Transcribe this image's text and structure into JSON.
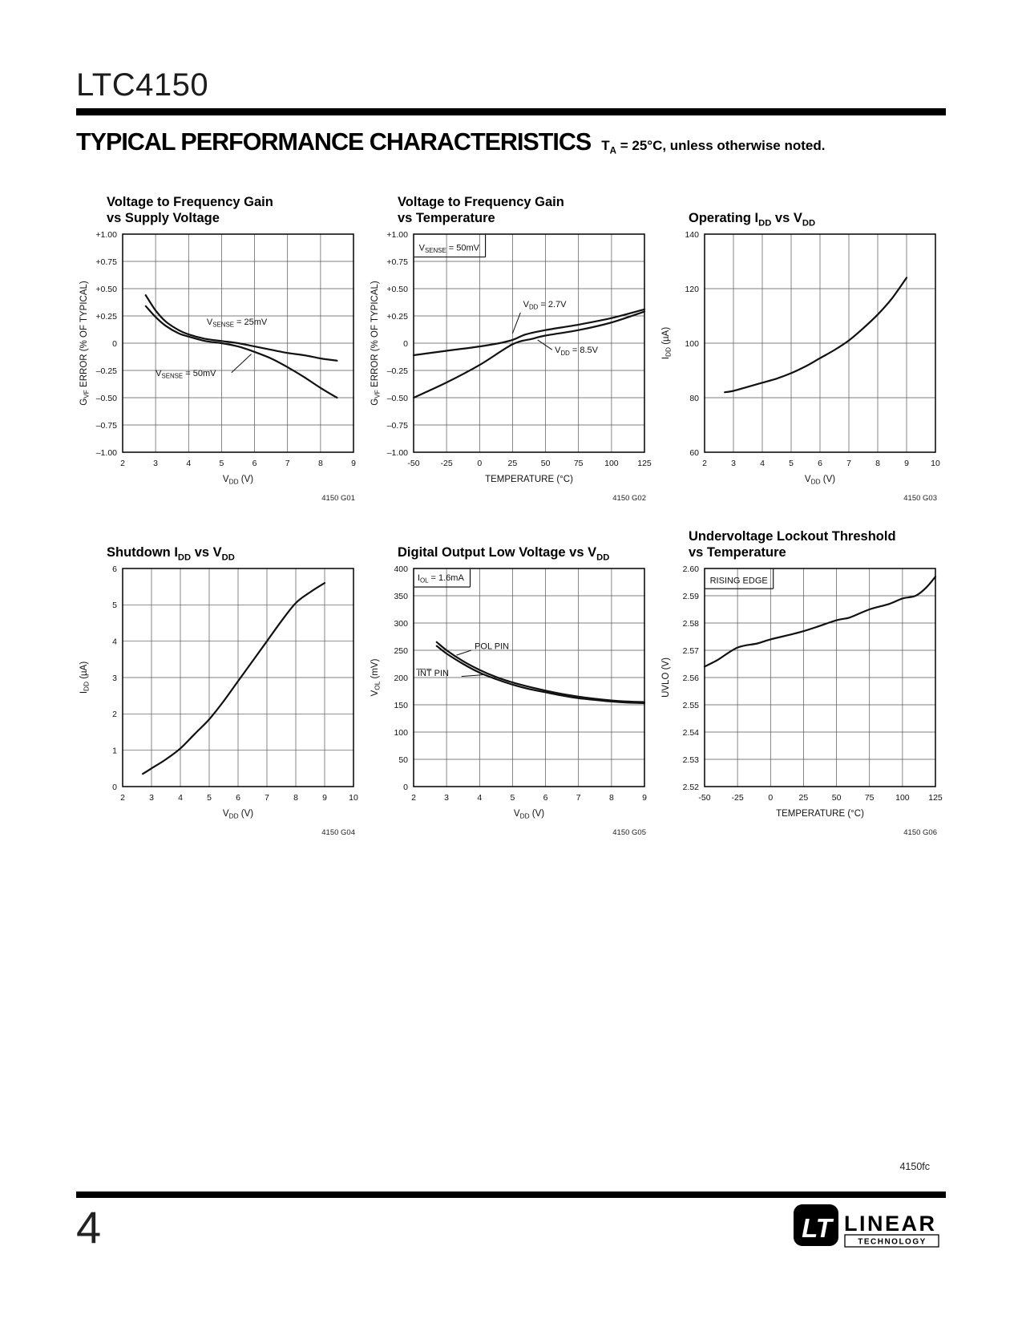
{
  "page": {
    "part_number": "LTC4150",
    "footer_code": "4150fc",
    "page_number": "4"
  },
  "header": {
    "section_title": "TYPICAL PERFORMANCE CHARACTERISTICS",
    "section_note": "T_{A} = 25°C, unless otherwise noted."
  },
  "logo": {
    "mark": "LT",
    "name": "LINEAR",
    "subname": "TECHNOLOGY"
  },
  "chart_data": [
    {
      "id": "4150 G01",
      "type": "line",
      "title": "Voltage to Frequency Gain\nvs Supply Voltage",
      "xlabel": "V_{DD} (V)",
      "ylabel": "G_{VF} ERROR (% OF TYPICAL)",
      "xlim": [
        2,
        9
      ],
      "ylim": [
        -1,
        1
      ],
      "grid": true,
      "xticks": [
        2,
        3,
        4,
        5,
        6,
        7,
        8,
        9
      ],
      "yticks": [
        1,
        0.75,
        0.5,
        0.25,
        0,
        -0.25,
        -0.5,
        -0.75,
        -1
      ],
      "ytick_labels": [
        "+1.00",
        "+0.75",
        "+0.50",
        "+0.25",
        "0",
        "–0.25",
        "–0.50",
        "–0.75",
        "–1.00"
      ],
      "series": [
        {
          "name": "V_{SENSE} = 25mV",
          "points": [
            [
              2.7,
              0.44
            ],
            [
              3,
              0.3
            ],
            [
              3.3,
              0.2
            ],
            [
              3.7,
              0.12
            ],
            [
              4,
              0.08
            ],
            [
              4.5,
              0.04
            ],
            [
              5,
              0.02
            ],
            [
              5.5,
              0
            ],
            [
              6,
              -0.03
            ],
            [
              6.5,
              -0.06
            ],
            [
              7,
              -0.09
            ],
            [
              7.5,
              -0.11
            ],
            [
              8,
              -0.14
            ],
            [
              8.5,
              -0.16
            ]
          ]
        },
        {
          "name": "V_{SENSE} = 50mV",
          "points": [
            [
              2.7,
              0.34
            ],
            [
              3,
              0.24
            ],
            [
              3.3,
              0.16
            ],
            [
              3.7,
              0.09
            ],
            [
              4,
              0.06
            ],
            [
              4.5,
              0.02
            ],
            [
              5,
              0
            ],
            [
              5.5,
              -0.03
            ],
            [
              6,
              -0.08
            ],
            [
              6.5,
              -0.14
            ],
            [
              7,
              -0.22
            ],
            [
              7.5,
              -0.31
            ],
            [
              8,
              -0.41
            ],
            [
              8.5,
              -0.5
            ]
          ]
        }
      ],
      "annotations": [
        {
          "text": "V_{SENSE} = 25mV",
          "x": 4.55,
          "y": 0.17,
          "anchor": "start"
        },
        {
          "text": "V_{SENSE} = 50mV",
          "x": 3.0,
          "y": -0.3,
          "anchor": "start",
          "leader": [
            5.3,
            -0.27,
            5.9,
            -0.1
          ]
        }
      ]
    },
    {
      "id": "4150 G02",
      "type": "line",
      "title": "Voltage to Frequency Gain\nvs Temperature",
      "xlabel": "TEMPERATURE (°C)",
      "ylabel": "G_{VF} ERROR (% OF TYPICAL)",
      "xlim": [
        -50,
        125
      ],
      "ylim": [
        -1,
        1
      ],
      "grid": true,
      "xticks": [
        -50,
        -25,
        0,
        25,
        50,
        75,
        100,
        125
      ],
      "yticks": [
        1,
        0.75,
        0.5,
        0.25,
        0,
        -0.25,
        -0.5,
        -0.75,
        -1
      ],
      "ytick_labels": [
        "+1.00",
        "+0.75",
        "+0.50",
        "+0.25",
        "0",
        "–0.25",
        "–0.50",
        "–0.75",
        "–1.00"
      ],
      "series": [
        {
          "name": "V_{DD} = 2.7V",
          "points": [
            [
              -50,
              -0.11
            ],
            [
              -25,
              -0.07
            ],
            [
              0,
              -0.03
            ],
            [
              15,
              0
            ],
            [
              25,
              0.03
            ],
            [
              35,
              0.08
            ],
            [
              50,
              0.12
            ],
            [
              75,
              0.17
            ],
            [
              100,
              0.23
            ],
            [
              125,
              0.31
            ]
          ]
        },
        {
          "name": "V_{DD} = 8.5V",
          "points": [
            [
              -50,
              -0.5
            ],
            [
              -25,
              -0.36
            ],
            [
              0,
              -0.2
            ],
            [
              25,
              -0.01
            ],
            [
              40,
              0.04
            ],
            [
              50,
              0.07
            ],
            [
              75,
              0.12
            ],
            [
              100,
              0.19
            ],
            [
              125,
              0.29
            ]
          ]
        }
      ],
      "annotations": [
        {
          "text": "V_{SENSE} = 50mV",
          "x": -46,
          "y": 0.85,
          "anchor": "start",
          "boxed": true
        },
        {
          "text": "V_{DD} = 2.7V",
          "x": 33,
          "y": 0.33,
          "anchor": "start",
          "leader": [
            31,
            0.28,
            25,
            0.09
          ]
        },
        {
          "text": "V_{DD} = 8.5V",
          "x": 57,
          "y": -0.09,
          "anchor": "start",
          "leader": [
            55,
            -0.06,
            44,
            0.03
          ]
        }
      ]
    },
    {
      "id": "4150 G03",
      "type": "line",
      "title": "Operating I_{DD} vs V_{DD}",
      "xlabel": "V_{DD} (V)",
      "ylabel": "I_{DD} (µA)",
      "xlim": [
        2,
        10
      ],
      "ylim": [
        60,
        140
      ],
      "grid": true,
      "xticks": [
        2,
        3,
        4,
        5,
        6,
        7,
        8,
        9,
        10
      ],
      "yticks": [
        140,
        120,
        100,
        80,
        60
      ],
      "ytick_labels": [
        "140",
        "120",
        "100",
        "80",
        "60"
      ],
      "series": [
        {
          "name": "",
          "points": [
            [
              2.7,
              82
            ],
            [
              3,
              82.5
            ],
            [
              3.5,
              84
            ],
            [
              4,
              85.5
            ],
            [
              4.5,
              87
            ],
            [
              5,
              89
            ],
            [
              5.5,
              91.5
            ],
            [
              6,
              94.5
            ],
            [
              6.5,
              97.5
            ],
            [
              7,
              101
            ],
            [
              7.5,
              105.5
            ],
            [
              8,
              110.5
            ],
            [
              8.5,
              116.5
            ],
            [
              9,
              124
            ]
          ]
        }
      ],
      "annotations": []
    },
    {
      "id": "4150 G04",
      "type": "line",
      "title": "Shutdown I_{DD} vs V_{DD}",
      "xlabel": "V_{DD} (V)",
      "ylabel": "I_{DD} (µA)",
      "xlim": [
        2,
        10
      ],
      "ylim": [
        0,
        6
      ],
      "grid": true,
      "xticks": [
        2,
        3,
        4,
        5,
        6,
        7,
        8,
        9,
        10
      ],
      "yticks": [
        6,
        5,
        4,
        3,
        2,
        1,
        0
      ],
      "ytick_labels": [
        "6",
        "5",
        "4",
        "3",
        "2",
        "1",
        "0"
      ],
      "series": [
        {
          "name": "",
          "points": [
            [
              2.7,
              0.35
            ],
            [
              3,
              0.5
            ],
            [
              3.5,
              0.75
            ],
            [
              4,
              1.05
            ],
            [
              4.5,
              1.45
            ],
            [
              5,
              1.85
            ],
            [
              5.5,
              2.35
            ],
            [
              6,
              2.9
            ],
            [
              6.5,
              3.45
            ],
            [
              7,
              4.0
            ],
            [
              7.5,
              4.55
            ],
            [
              8,
              5.05
            ],
            [
              8.5,
              5.35
            ],
            [
              9,
              5.6
            ]
          ]
        }
      ],
      "annotations": []
    },
    {
      "id": "4150 G05",
      "type": "line",
      "title": "Digital Output Low Voltage vs V_{DD}",
      "xlabel": "V_{DD} (V)",
      "ylabel": "V_{OL} (mV)",
      "xlim": [
        2,
        9
      ],
      "ylim": [
        0,
        400
      ],
      "grid": true,
      "xticks": [
        2,
        3,
        4,
        5,
        6,
        7,
        8,
        9
      ],
      "yticks": [
        400,
        350,
        300,
        250,
        200,
        150,
        100,
        50,
        0
      ],
      "ytick_labels": [
        "400",
        "350",
        "300",
        "250",
        "200",
        "150",
        "100",
        "50",
        "0"
      ],
      "series": [
        {
          "name": "POL PIN",
          "points": [
            [
              2.7,
              265
            ],
            [
              3,
              250
            ],
            [
              3.5,
              230
            ],
            [
              4,
              214
            ],
            [
              4.5,
              201
            ],
            [
              5,
              191
            ],
            [
              5.5,
              183
            ],
            [
              6,
              176
            ],
            [
              6.5,
              170
            ],
            [
              7,
              165
            ],
            [
              7.5,
              161
            ],
            [
              8,
              158
            ],
            [
              8.5,
              156
            ],
            [
              9,
              155
            ]
          ]
        },
        {
          "name": "I̅N̅T̅ PIN",
          "points": [
            [
              2.7,
              258
            ],
            [
              3,
              244
            ],
            [
              3.5,
              225
            ],
            [
              4,
              209
            ],
            [
              4.5,
              197
            ],
            [
              5,
              187
            ],
            [
              5.5,
              179
            ],
            [
              6,
              173
            ],
            [
              6.5,
              167
            ],
            [
              7,
              162
            ],
            [
              7.5,
              159
            ],
            [
              8,
              156
            ],
            [
              8.5,
              154
            ],
            [
              9,
              153
            ]
          ]
        }
      ],
      "annotations": [
        {
          "text": "I_{OL} = 1.6mA",
          "x": 2.12,
          "y": 378,
          "anchor": "start",
          "boxed": true
        },
        {
          "text": "POL PIN",
          "x": 3.85,
          "y": 252,
          "anchor": "start",
          "leader": [
            3.75,
            250,
            3.3,
            241
          ]
        },
        {
          "text": "I̅N̅T̅ PIN",
          "x": 2.12,
          "y": 203,
          "anchor": "start",
          "leader": [
            3.45,
            202,
            4.1,
            205
          ]
        }
      ]
    },
    {
      "id": "4150 G06",
      "type": "line",
      "title": "Undervoltage Lockout Threshold\nvs Temperature",
      "xlabel": "TEMPERATURE (°C)",
      "ylabel": "UVLO (V)",
      "xlim": [
        -50,
        125
      ],
      "ylim": [
        2.52,
        2.6
      ],
      "grid": true,
      "xticks": [
        -50,
        -25,
        0,
        25,
        50,
        75,
        100,
        125
      ],
      "yticks": [
        2.6,
        2.59,
        2.58,
        2.57,
        2.56,
        2.55,
        2.54,
        2.53,
        2.52
      ],
      "ytick_labels": [
        "2.60",
        "2.59",
        "2.58",
        "2.57",
        "2.56",
        "2.55",
        "2.54",
        "2.53",
        "2.52"
      ],
      "series": [
        {
          "name": "RISING EDGE",
          "points": [
            [
              -50,
              2.564
            ],
            [
              -40,
              2.5665
            ],
            [
              -25,
              2.571
            ],
            [
              -10,
              2.5725
            ],
            [
              0,
              2.574
            ],
            [
              25,
              2.577
            ],
            [
              50,
              2.581
            ],
            [
              60,
              2.582
            ],
            [
              75,
              2.585
            ],
            [
              90,
              2.587
            ],
            [
              100,
              2.589
            ],
            [
              110,
              2.59
            ],
            [
              118,
              2.593
            ],
            [
              125,
              2.597
            ]
          ]
        }
      ],
      "annotations": [
        {
          "text": "RISING EDGE",
          "x": -46,
          "y": 2.5945,
          "anchor": "start",
          "boxed": true
        }
      ]
    }
  ]
}
